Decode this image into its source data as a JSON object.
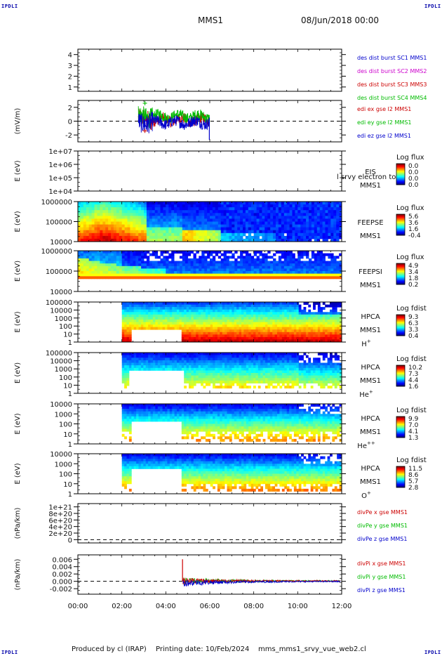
{
  "header": {
    "corner_label": "IPDLI",
    "spacecraft": "MMS1",
    "date": "08/Jun/2018 00:00"
  },
  "footer": {
    "produced_by": "Produced by cl (IRAP)",
    "printing_date": "Printing date: 10/Feb/2024",
    "script": "mms_mms1_srvy_vue_web2.cl"
  },
  "chart_data": [
    {
      "type": "line",
      "ylabel": "",
      "yticks": [
        "1",
        "2",
        "3",
        "4"
      ],
      "ylim": [
        0.6,
        4.5
      ],
      "series": [
        {
          "name": "des dist burst SC1 MMS1",
          "color": "#0000cc",
          "values": []
        },
        {
          "name": "des dist burst SC2 MMS2",
          "color": "#cc00cc",
          "values": []
        },
        {
          "name": "des dist burst SC3 MMS3",
          "color": "#cc0000",
          "values": []
        },
        {
          "name": "des dist burst SC4 MMS4",
          "color": "#00bb00",
          "values": []
        }
      ]
    },
    {
      "type": "line",
      "ylabel": "(mV/m)",
      "yticks": [
        "-2",
        "0",
        "2"
      ],
      "ylim": [
        -3.0,
        3.0
      ],
      "x_active": [
        "02:45",
        "06:00"
      ],
      "series": [
        {
          "name": "edi ex gse l2 MMS1",
          "color": "#cc0000"
        },
        {
          "name": "edi ey gse l2 MMS1",
          "color": "#00bb00"
        },
        {
          "name": "edi ez gse l2 MMS1",
          "color": "#0000cc"
        }
      ]
    },
    {
      "type": "heatmap",
      "ylabel": "E (eV)",
      "yticks": [
        "1e+04",
        "1e+05",
        "1e+06",
        "1e+07"
      ],
      "side_labels": [
        "EIS",
        "MMS1"
      ],
      "overlap_text": "l srvy electron to",
      "colorbar": {
        "title": "Log flux",
        "ticks": [
          "0.0",
          "0.0",
          "0.0",
          "0.0"
        ]
      },
      "values": []
    },
    {
      "type": "heatmap",
      "ylabel": "E (eV)",
      "yticks": [
        "10000",
        "100000",
        "1000000"
      ],
      "side_labels": [
        "FEEPSE",
        "MMS1"
      ],
      "colorbar": {
        "title": "Log flux",
        "ticks": [
          "5.6",
          "3.6",
          "1.6",
          "-0.4"
        ]
      },
      "x_range": [
        "00:00",
        "12:00"
      ]
    },
    {
      "type": "heatmap",
      "ylabel": "E (eV)",
      "yticks": [
        "10000",
        "100000",
        "1000000"
      ],
      "side_labels": [
        "FEEPSI",
        "MMS1"
      ],
      "colorbar": {
        "title": "Log flux",
        "ticks": [
          "4.9",
          "3.4",
          "1.8",
          "0.2"
        ]
      },
      "x_range": [
        "00:00",
        "12:00"
      ]
    },
    {
      "type": "heatmap",
      "ylabel": "E (eV)",
      "yticks": [
        "1",
        "10",
        "100",
        "1000",
        "10000",
        "100000"
      ],
      "side_labels": [
        "HPCA",
        "MMS1",
        "H+"
      ],
      "colorbar": {
        "title": "Log fdist",
        "ticks": [
          "9.3",
          "6.3",
          "3.3",
          "0.4"
        ]
      },
      "x_range": [
        "02:00",
        "12:00"
      ]
    },
    {
      "type": "heatmap",
      "ylabel": "E (eV)",
      "yticks": [
        "1",
        "10",
        "100",
        "1000",
        "10000",
        "100000"
      ],
      "side_labels": [
        "HPCA",
        "MMS1",
        "He+"
      ],
      "colorbar": {
        "title": "Log fdist",
        "ticks": [
          "10.2",
          "7.3",
          "4.4",
          "1.6"
        ]
      },
      "x_range": [
        "02:00",
        "12:00"
      ]
    },
    {
      "type": "heatmap",
      "ylabel": "E (eV)",
      "yticks": [
        "1",
        "10",
        "100",
        "1000",
        "10000"
      ],
      "side_labels": [
        "HPCA",
        "MMS1",
        "He++"
      ],
      "colorbar": {
        "title": "Log fdist",
        "ticks": [
          "9.9",
          "7.0",
          "4.1",
          "1.3"
        ]
      },
      "x_range": [
        "02:00",
        "12:00"
      ]
    },
    {
      "type": "heatmap",
      "ylabel": "E (eV)",
      "yticks": [
        "1",
        "10",
        "100",
        "1000",
        "10000"
      ],
      "side_labels": [
        "HPCA",
        "MMS1",
        "O+"
      ],
      "colorbar": {
        "title": "Log fdist",
        "ticks": [
          "11.5",
          "8.6",
          "5.7",
          "2.8"
        ]
      },
      "x_range": [
        "02:00",
        "12:00"
      ]
    },
    {
      "type": "line",
      "ylabel": "(nPa/km)",
      "yticks": [
        "0",
        "2e+20",
        "4e+20",
        "6e+20",
        "8e+20",
        "1e+21"
      ],
      "ylim": [
        -1e+20,
        1.1e+21
      ],
      "series": [
        {
          "name": "divPe x gse MMS1",
          "color": "#cc0000"
        },
        {
          "name": "divPe y gse MMS1",
          "color": "#00bb00"
        },
        {
          "name": "divPe z gse MMS1",
          "color": "#0000cc"
        }
      ]
    },
    {
      "type": "line",
      "ylabel": "(nPa/km)",
      "yticks": [
        "-0.002",
        "0.000",
        "0.002",
        "0.004",
        "0.006"
      ],
      "ylim": [
        -0.0035,
        0.0072
      ],
      "x": [
        "04:45",
        "04:47",
        "05:00",
        "06:00",
        "08:00",
        "10:00",
        "11:55"
      ],
      "series": [
        {
          "name": "divPi x gse MMS1",
          "color": "#cc0000",
          "values": [
            0.006,
            0.0003,
            0.0001,
            0.0,
            0.0,
            0.0,
            0.0
          ]
        },
        {
          "name": "divPi y gse MMS1",
          "color": "#00bb00",
          "values": [
            0.0,
            0.0004,
            0.0002,
            0.0,
            0.0,
            0.0,
            0.0
          ]
        },
        {
          "name": "divPi z gse MMS1",
          "color": "#0000cc",
          "values": [
            0.0,
            -0.0008,
            -0.0006,
            -0.0004,
            -0.0002,
            -0.0001,
            0.0
          ]
        }
      ]
    }
  ],
  "x_axis": {
    "ticks": [
      "00:00",
      "02:00",
      "04:00",
      "06:00",
      "08:00",
      "10:00",
      "12:00"
    ]
  }
}
